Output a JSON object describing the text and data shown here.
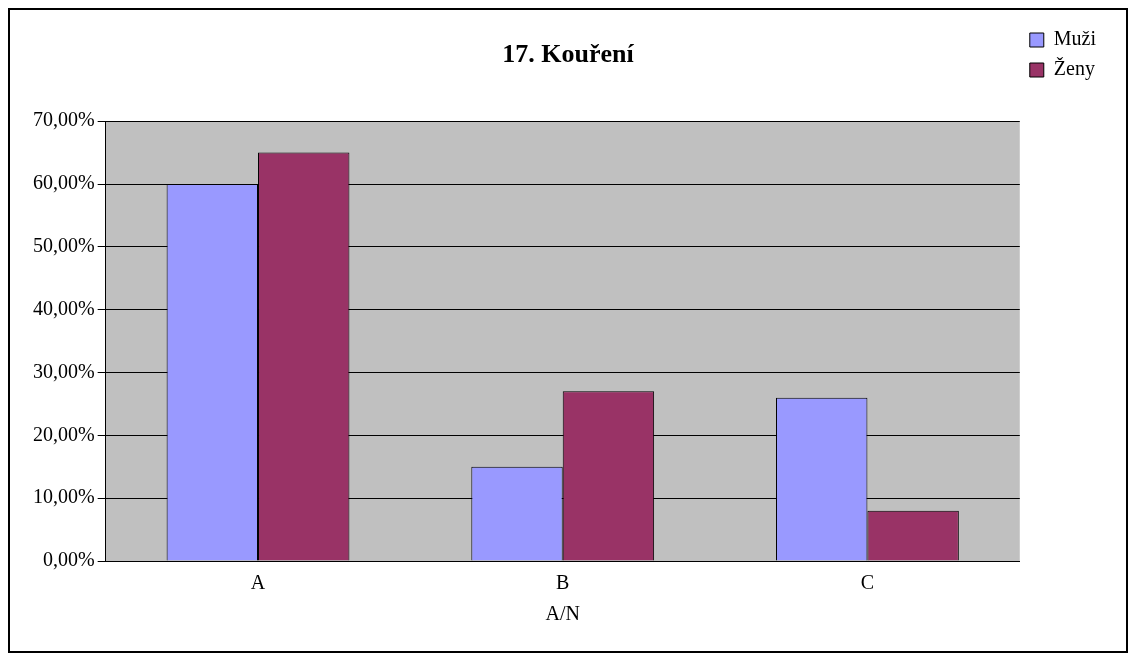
{
  "chart_data": {
    "type": "bar",
    "title": "17. Kouření",
    "xlabel": "A/N",
    "categories": [
      "A",
      "B",
      "C"
    ],
    "series": [
      {
        "name": "Muži",
        "color": "#9999ff",
        "values": [
          60,
          15,
          26
        ]
      },
      {
        "name": "Ženy",
        "color": "#993366",
        "values": [
          65,
          27,
          8
        ]
      }
    ],
    "ylim": [
      0,
      70
    ],
    "yticks": [
      {
        "value": 0,
        "label": "0,00%"
      },
      {
        "value": 10,
        "label": "10,00%"
      },
      {
        "value": 20,
        "label": "20,00%"
      },
      {
        "value": 30,
        "label": "30,00%"
      },
      {
        "value": 40,
        "label": "40,00%"
      },
      {
        "value": 50,
        "label": "50,00%"
      },
      {
        "value": 60,
        "label": "60,00%"
      },
      {
        "value": 70,
        "label": "70,00%"
      }
    ],
    "grid": "y",
    "legend": "top right"
  }
}
